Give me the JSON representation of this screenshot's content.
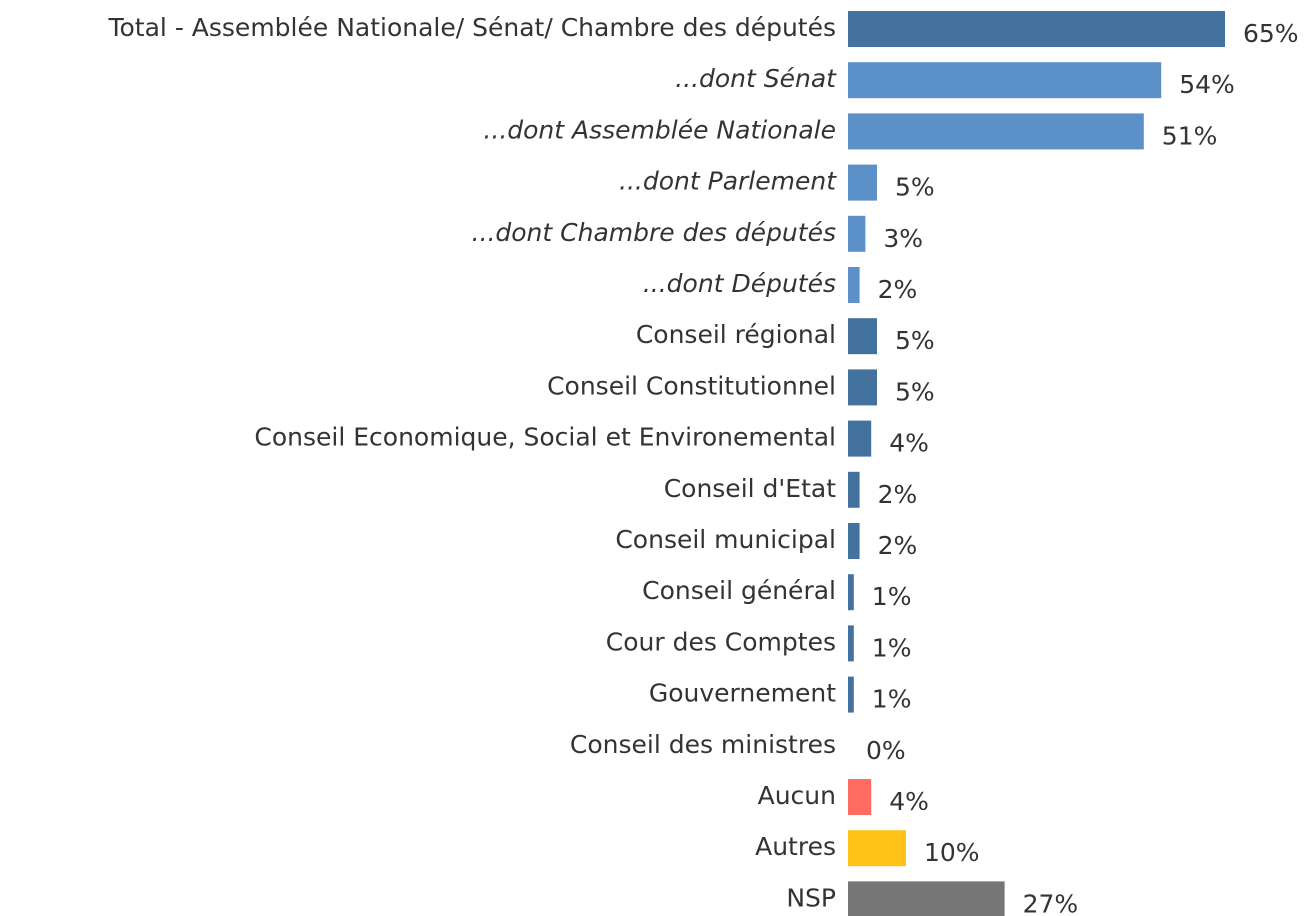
{
  "chart_data": {
    "type": "bar",
    "orientation": "horizontal",
    "categories": [
      "Total - Assemblée Nationale/ Sénat/ Chambre des députés",
      "...dont Sénat",
      "...dont Assemblée Nationale",
      "...dont Parlement",
      "...dont Chambre des députés",
      "...dont Députés",
      "Conseil régional",
      "Conseil Constitutionnel",
      "Conseil Economique, Social et Environemental",
      "Conseil d'Etat",
      "Conseil municipal",
      "Conseil général",
      "Cour des Comptes",
      "Gouvernement",
      "Conseil des ministres",
      "Aucun",
      "Autres",
      "NSP"
    ],
    "values": [
      65,
      54,
      51,
      5,
      3,
      2,
      5,
      5,
      4,
      2,
      2,
      1,
      1,
      1,
      0,
      4,
      10,
      27
    ],
    "value_labels": [
      "65%",
      "54%",
      "51%",
      "5%",
      "3%",
      "2%",
      "5%",
      "5%",
      "4%",
      "2%",
      "2%",
      "1%",
      "1%",
      "1%",
      "0%",
      "4%",
      "10%",
      "27%"
    ],
    "colors": [
      "#44729f",
      "#5b90c8",
      "#5b90c8",
      "#5b90c8",
      "#5b90c8",
      "#5b90c8",
      "#44729f",
      "#44729f",
      "#44729f",
      "#44729f",
      "#44729f",
      "#44729f",
      "#44729f",
      "#44729f",
      "#44729f",
      "#ff6b61",
      "#ffc118",
      "#767676"
    ],
    "italic": [
      false,
      true,
      true,
      true,
      true,
      true,
      false,
      false,
      false,
      false,
      false,
      false,
      false,
      false,
      false,
      false,
      false,
      false
    ]
  }
}
